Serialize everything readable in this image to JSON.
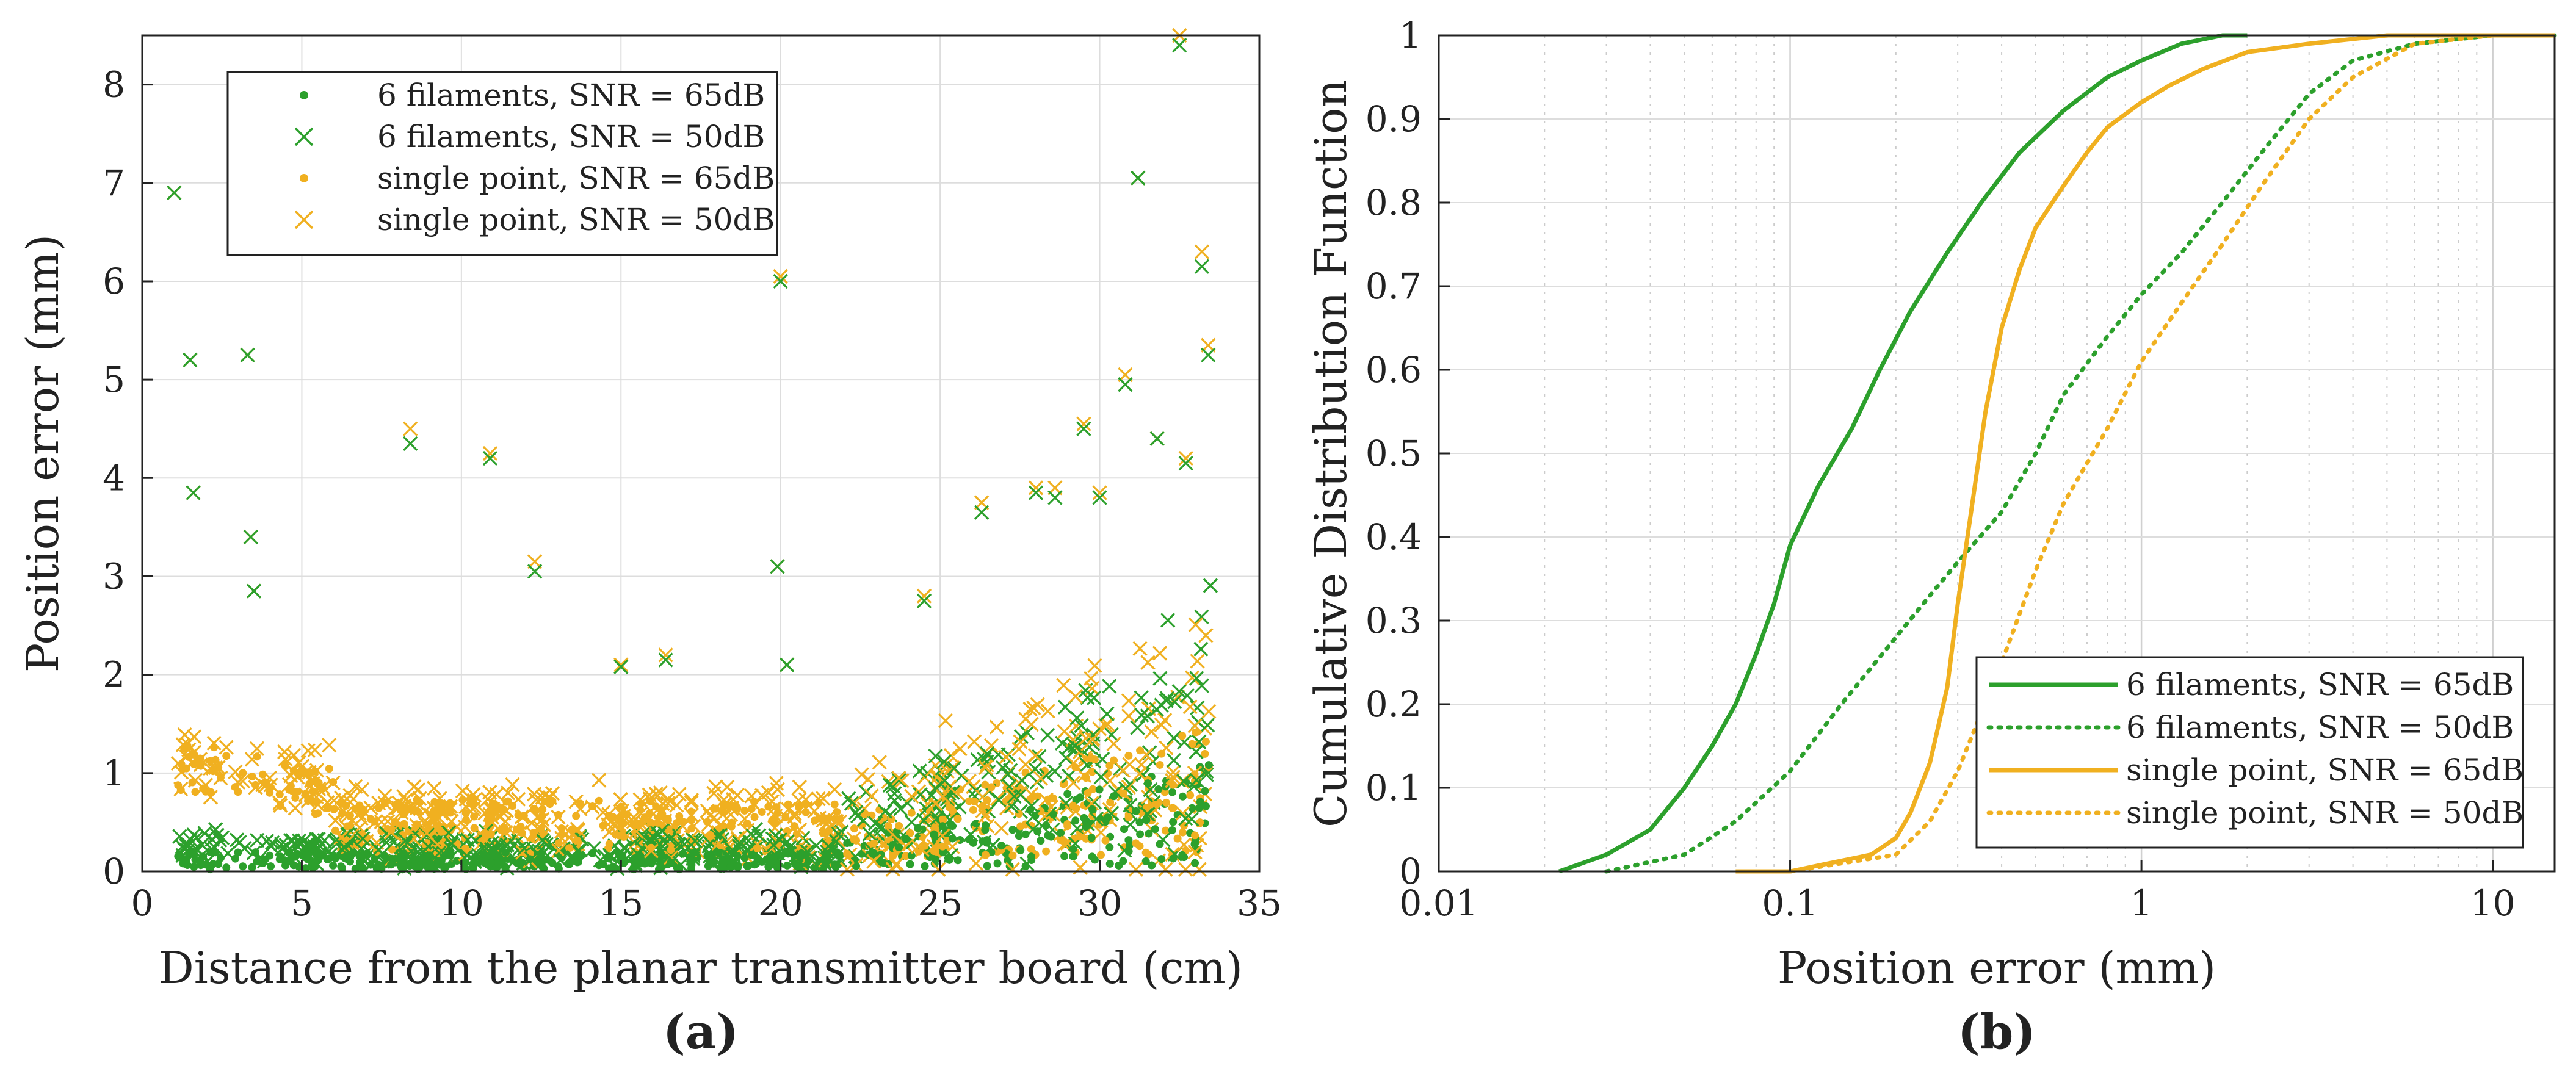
{
  "chart_data": [
    {
      "type": "scatter",
      "panel_label": "(a)",
      "xlabel": "Distance from the planar transmitter board (cm)",
      "ylabel": "Position error (mm)",
      "xlim": [
        0,
        35
      ],
      "ylim": [
        0,
        8.5
      ],
      "xticks": [
        0,
        5,
        10,
        15,
        20,
        25,
        30,
        35
      ],
      "yticks": [
        0,
        1,
        2,
        3,
        4,
        5,
        6,
        7,
        8
      ],
      "grid": true,
      "legend_position": "top-left",
      "series": [
        {
          "name": "6 filaments, SNR = 65dB",
          "marker": "dot",
          "color": "#2ca02c"
        },
        {
          "name": "6 filaments, SNR = 50dB",
          "marker": "x",
          "color": "#2ca02c"
        },
        {
          "name": "single point, SNR = 65dB",
          "marker": "dot",
          "color": "#f0b020"
        },
        {
          "name": "single point, SNR = 50dB",
          "marker": "x",
          "color": "#f0b020"
        }
      ],
      "outliers": {
        "x": [
          1.0,
          1.5,
          1.6,
          3.3,
          3.4,
          3.5,
          8.4,
          10.9,
          12.3,
          15.0,
          16.4,
          19.9,
          20.0,
          20.2,
          24.5,
          26.3,
          28.0,
          28.6,
          29.5,
          30.0,
          30.8,
          31.2,
          31.8,
          32.5,
          32.7,
          33.2,
          33.4
        ],
        "y_single_point": [
          6.9,
          5.2,
          3.85,
          5.25,
          3.4,
          2.85,
          4.5,
          4.25,
          3.15,
          2.1,
          2.2,
          3.1,
          6.05,
          2.1,
          2.8,
          3.75,
          3.9,
          3.9,
          4.55,
          3.85,
          5.05,
          7.05,
          4.4,
          8.5,
          4.2,
          6.3,
          5.35
        ],
        "y_6_filaments": [
          6.9,
          5.2,
          3.85,
          5.25,
          3.4,
          2.85,
          4.35,
          4.2,
          3.05,
          2.08,
          2.15,
          3.1,
          6.0,
          2.1,
          2.75,
          3.65,
          3.85,
          3.8,
          4.5,
          3.8,
          4.95,
          7.05,
          4.4,
          8.4,
          4.15,
          6.15,
          5.25
        ]
      }
    },
    {
      "type": "line",
      "panel_label": "(b)",
      "xlabel": "Position error (mm)",
      "ylabel": "Cumulative Distribution Function",
      "xscale": "log",
      "xlim": [
        0.01,
        15
      ],
      "ylim": [
        0,
        1
      ],
      "xticks": [
        "0.01",
        "0.1",
        "1",
        "10"
      ],
      "yticks": [
        "0",
        "0.1",
        "0.2",
        "0.3",
        "0.4",
        "0.5",
        "0.6",
        "0.7",
        "0.8",
        "0.9",
        "1"
      ],
      "grid": true,
      "legend_position": "bottom-right",
      "series": [
        {
          "name": "6 filaments, SNR = 65dB",
          "style": "solid",
          "color": "#2ca02c",
          "x": [
            0.022,
            0.03,
            0.04,
            0.05,
            0.06,
            0.07,
            0.08,
            0.09,
            0.1,
            0.12,
            0.15,
            0.18,
            0.22,
            0.28,
            0.35,
            0.45,
            0.6,
            0.8,
            1.0,
            1.3,
            1.7,
            2.0
          ],
          "y": [
            0.0,
            0.02,
            0.05,
            0.1,
            0.15,
            0.2,
            0.26,
            0.32,
            0.39,
            0.46,
            0.53,
            0.6,
            0.67,
            0.74,
            0.8,
            0.86,
            0.91,
            0.95,
            0.97,
            0.99,
            1.0,
            1.0
          ]
        },
        {
          "name": "6 filaments, SNR = 50dB",
          "style": "dotted",
          "color": "#2ca02c",
          "x": [
            0.03,
            0.05,
            0.07,
            0.1,
            0.14,
            0.2,
            0.25,
            0.3,
            0.4,
            0.5,
            0.6,
            0.8,
            1.0,
            1.3,
            1.7,
            2.2,
            3.0,
            4.0,
            6.0,
            10.0,
            15.0
          ],
          "y": [
            0.0,
            0.02,
            0.06,
            0.12,
            0.2,
            0.28,
            0.33,
            0.37,
            0.43,
            0.5,
            0.57,
            0.64,
            0.69,
            0.74,
            0.8,
            0.86,
            0.93,
            0.97,
            0.99,
            1.0,
            1.0
          ]
        },
        {
          "name": "single point, SNR = 65dB",
          "style": "solid",
          "color": "#f0b020",
          "x": [
            0.07,
            0.1,
            0.13,
            0.17,
            0.2,
            0.22,
            0.25,
            0.28,
            0.3,
            0.33,
            0.36,
            0.4,
            0.45,
            0.5,
            0.6,
            0.7,
            0.8,
            1.0,
            1.2,
            1.5,
            2.0,
            3.0,
            5.0,
            10.0,
            15.0
          ],
          "y": [
            0.0,
            0.0,
            0.01,
            0.02,
            0.04,
            0.07,
            0.13,
            0.22,
            0.32,
            0.44,
            0.55,
            0.65,
            0.72,
            0.77,
            0.82,
            0.86,
            0.89,
            0.92,
            0.94,
            0.96,
            0.98,
            0.99,
            1.0,
            1.0,
            1.0
          ]
        },
        {
          "name": "single point, SNR = 50dB",
          "style": "dotted",
          "color": "#f0b020",
          "x": [
            0.1,
            0.2,
            0.25,
            0.3,
            0.4,
            0.5,
            0.6,
            0.8,
            1.0,
            1.3,
            1.7,
            2.2,
            3.0,
            4.0,
            6.0,
            10.0,
            15.0
          ],
          "y": [
            0.0,
            0.02,
            0.06,
            0.12,
            0.25,
            0.36,
            0.44,
            0.53,
            0.61,
            0.68,
            0.75,
            0.82,
            0.9,
            0.95,
            0.99,
            1.0,
            1.0
          ]
        }
      ]
    }
  ]
}
